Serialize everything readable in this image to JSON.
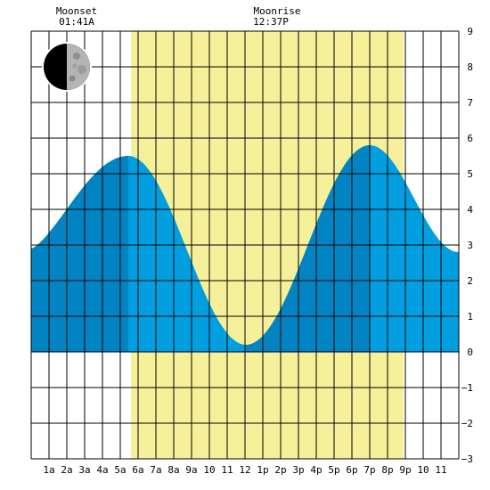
{
  "chart_data": {
    "type": "area",
    "title": "",
    "xlabel": "",
    "ylabel": "",
    "x_range": [
      0,
      24
    ],
    "ylim": [
      -3,
      9
    ],
    "x_tick_labels": [
      "1a",
      "2a",
      "3a",
      "4a",
      "5a",
      "6a",
      "7a",
      "8a",
      "9a",
      "10",
      "11",
      "12",
      "1p",
      "2p",
      "3p",
      "4p",
      "5p",
      "6p",
      "7p",
      "8p",
      "9p",
      "10",
      "11"
    ],
    "y_tick_labels": [
      "9",
      "8",
      "7",
      "6",
      "5",
      "4",
      "3",
      "2",
      "1",
      "0",
      "−1",
      "−2",
      "−3"
    ],
    "daylight_hours": [
      5.6,
      20.9
    ],
    "tide_extremes": [
      {
        "type": "high",
        "hour": 5.45,
        "height": 5.5
      },
      {
        "type": "low",
        "hour": 12.05,
        "height": 0.2
      },
      {
        "type": "high",
        "hour": 19.0,
        "height": 5.8
      }
    ],
    "tide_start_height": 2.9,
    "tide_end_height": 2.8,
    "shading_breaks_hours": [
      5.45,
      12.05,
      19.0
    ],
    "grid": true,
    "colors": {
      "daylight": "#f5f099",
      "tide_dark": "#0284c2",
      "tide_light": "#029fe0",
      "grid": "#000000",
      "background": "#ffffff"
    }
  },
  "annotations": {
    "moonset_label": "Moonset",
    "moonset_time": "01:41A",
    "moonrise_label": "Moonrise",
    "moonrise_time": "12:37P",
    "moon_phase": "last-quarter"
  }
}
